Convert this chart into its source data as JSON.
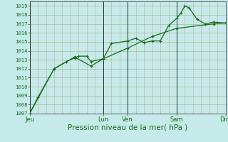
{
  "bg_color": "#c6eaea",
  "grid_color_v": "#d4a0a0",
  "grid_color_h": "#90c890",
  "line_color": "#1a6b1a",
  "xlabel": "Pression niveau de la mer( hPa )",
  "ylim": [
    1007,
    1019.5
  ],
  "yticks": [
    1007,
    1008,
    1009,
    1010,
    1011,
    1012,
    1013,
    1014,
    1015,
    1016,
    1017,
    1018,
    1019
  ],
  "xtick_labels": [
    "Jeu",
    "Lun",
    "Ven",
    "Sam",
    "Dim"
  ],
  "xtick_positions": [
    0,
    36,
    48,
    72,
    96
  ],
  "vline_positions": [
    0,
    36,
    48,
    72,
    96
  ],
  "line1_x": [
    0,
    4,
    12,
    18,
    22,
    24,
    28,
    30,
    36,
    40,
    48,
    52,
    56,
    60,
    64,
    68,
    72,
    74,
    76,
    78,
    82,
    86,
    90,
    96
  ],
  "line1_y": [
    1007,
    1008.8,
    1012.0,
    1012.8,
    1013.2,
    1013.4,
    1013.4,
    1012.8,
    1013.1,
    1014.8,
    1015.1,
    1015.4,
    1014.9,
    1015.1,
    1015.1,
    1016.8,
    1017.6,
    1018.2,
    1019.0,
    1018.8,
    1017.5,
    1017.0,
    1017.2,
    1017.1
  ],
  "line2_x": [
    0,
    12,
    22,
    30,
    36,
    48,
    60,
    72,
    90,
    96
  ],
  "line2_y": [
    1007,
    1012.0,
    1013.3,
    1012.3,
    1013.1,
    1014.3,
    1015.6,
    1016.5,
    1017.0,
    1017.1
  ],
  "total_x_range": 96,
  "xlabel_fontsize": 7.5,
  "ytick_fontsize": 5.2,
  "xtick_fontsize": 6.0
}
